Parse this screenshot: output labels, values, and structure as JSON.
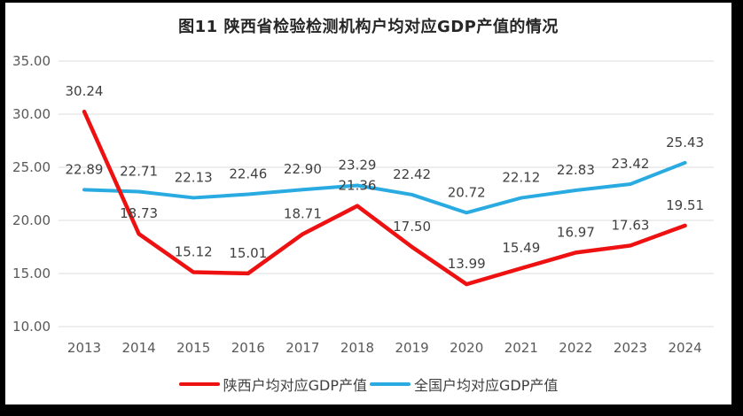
{
  "title": "图11  陕西省检验检测机构户均对应GDP产值的情况",
  "chart_data": {
    "type": "line",
    "categories": [
      "2013",
      "2014",
      "2015",
      "2016",
      "2017",
      "2018",
      "2019",
      "2020",
      "2021",
      "2022",
      "2023",
      "2024"
    ],
    "series": [
      {
        "name": "陕西户均对应GDP产值",
        "color": "#ee1111",
        "values": [
          30.24,
          18.73,
          15.12,
          15.01,
          18.71,
          21.36,
          17.5,
          13.99,
          15.49,
          16.97,
          17.63,
          19.51
        ]
      },
      {
        "name": "全国户均对应GDP产值",
        "color": "#29abe2",
        "values": [
          22.89,
          22.71,
          22.13,
          22.46,
          22.9,
          23.29,
          22.42,
          20.72,
          22.12,
          22.83,
          23.42,
          25.43
        ]
      }
    ],
    "ylim": [
      10,
      35
    ],
    "yticks": [
      35,
      30,
      25,
      20,
      15,
      10
    ],
    "ytick_format_decimals": 2,
    "data_label_decimals": 2,
    "grid": "horizontal",
    "legend_position": "bottom",
    "data_labels": true
  },
  "colors": {
    "grid": "#dcdcdc",
    "axis_text": "#595959",
    "data_label_text": "#404040",
    "title_text": "#262626",
    "frame_border": "#000000",
    "plot_background": "#ffffff"
  }
}
